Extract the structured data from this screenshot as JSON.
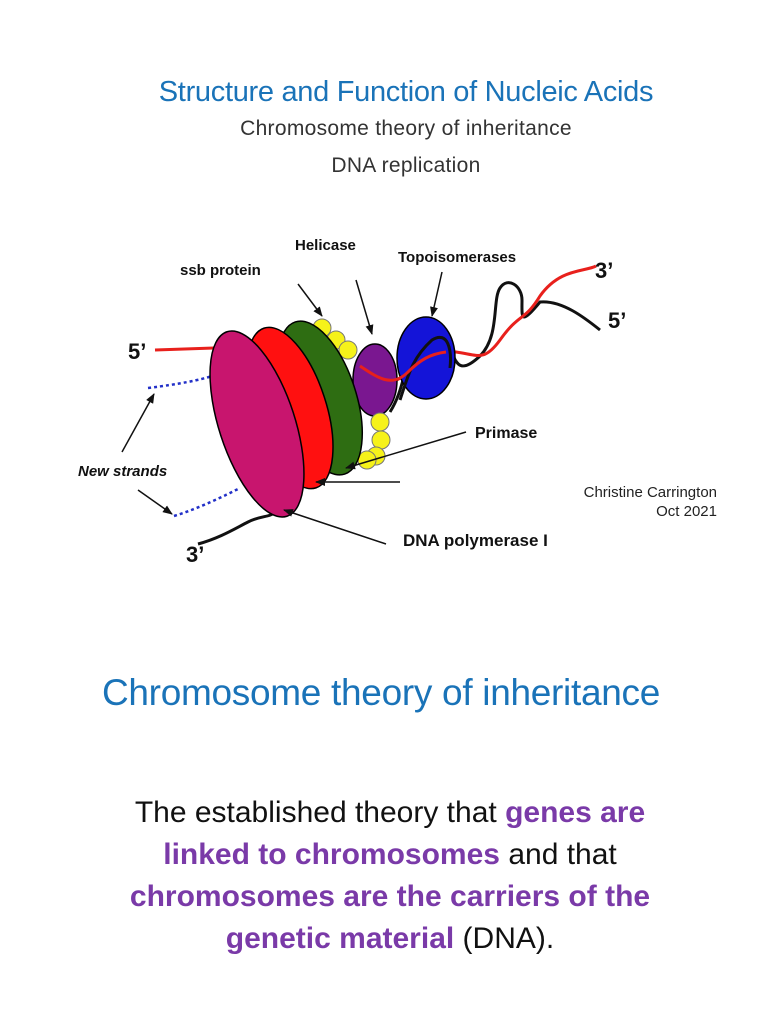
{
  "title": "Structure and Function of Nucleic Acids",
  "subtitles": [
    "Chromosome theory of inheritance",
    "DNA replication"
  ],
  "diagram": {
    "labels": {
      "helicase": "Helicase",
      "ssb_protein": "ssb protein",
      "topoisomerases": "Topoisomerases",
      "primase": "Primase",
      "new_strands": "New strands",
      "dna_polymerase": "DNA polymerase I",
      "five_prime_left": "5’",
      "three_prime_top": "3’",
      "five_prime_right": "5’",
      "three_prime_bottom": "3’"
    },
    "colors": {
      "red_strand": "#e8201c",
      "black_strand": "#111111",
      "new_strand": "#2230c8",
      "polymerase": "#c8156e",
      "primase": "#ff1010",
      "green_protein": "#2e6d12",
      "ssb": "#f6f21a",
      "helicase": "#7a1790",
      "topoisomerase": "#1414d8"
    }
  },
  "credit": {
    "author": "Christine Carrington",
    "date": "Oct 2021"
  },
  "section_heading": "Chromosome theory of inheritance",
  "body": {
    "part1": "The established theory that ",
    "highlight1": "genes are linked to chromosomes",
    "part2": " and that ",
    "highlight2": "chromosomes are the carriers of the genetic material",
    "part3": " (DNA)."
  }
}
